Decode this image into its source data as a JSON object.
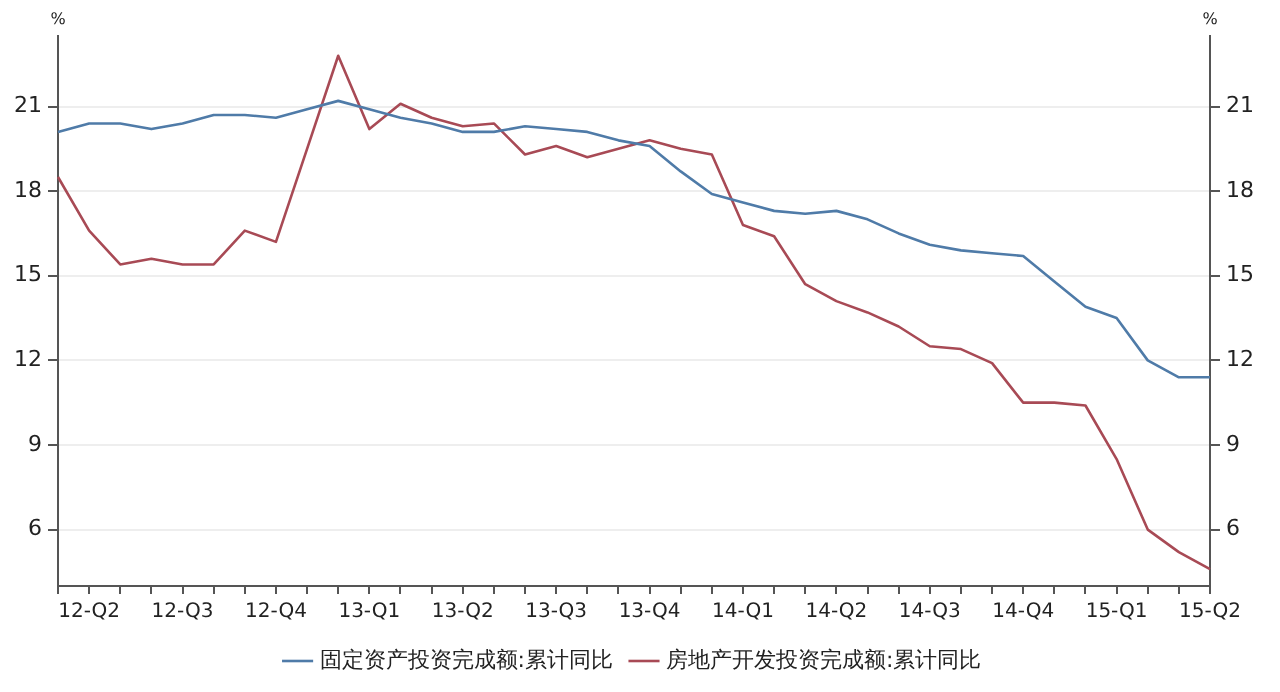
{
  "chart_data": {
    "type": "line",
    "ylabel": "%",
    "y2label": "%",
    "categories": [
      null,
      "12-Q2",
      null,
      null,
      "12-Q3",
      null,
      null,
      "12-Q4",
      null,
      null,
      "13-Q1",
      null,
      null,
      "13-Q2",
      null,
      null,
      "13-Q3",
      null,
      null,
      "13-Q4",
      null,
      null,
      "14-Q1",
      null,
      null,
      "14-Q2",
      null,
      null,
      "14-Q3",
      null,
      null,
      "14-Q4",
      null,
      null,
      "15-Q1",
      null,
      null,
      "15-Q2"
    ],
    "series": [
      {
        "name": "固定资产投资完成额:累计同比",
        "color": "#4f7ba8",
        "values": [
          20.1,
          20.4,
          20.4,
          20.2,
          20.4,
          20.7,
          20.7,
          20.6,
          20.9,
          21.2,
          20.9,
          20.6,
          20.4,
          20.1,
          20.1,
          20.3,
          20.2,
          20.1,
          19.8,
          19.6,
          18.7,
          17.9,
          17.6,
          17.3,
          17.2,
          17.3,
          17.0,
          16.5,
          16.1,
          15.9,
          15.8,
          15.7,
          14.8,
          13.9,
          13.5,
          12.0,
          11.4,
          11.4
        ]
      },
      {
        "name": "房地产开发投资完成额:累计同比",
        "color": "#a84a55",
        "values": [
          18.5,
          16.6,
          15.4,
          15.6,
          15.4,
          15.4,
          16.6,
          16.2,
          19.5,
          22.8,
          20.2,
          21.1,
          20.6,
          20.3,
          20.4,
          19.3,
          19.6,
          19.2,
          19.5,
          19.8,
          19.5,
          19.3,
          16.8,
          16.4,
          14.7,
          14.1,
          13.7,
          13.2,
          12.5,
          12.4,
          11.9,
          10.5,
          10.5,
          10.4,
          8.5,
          6.0,
          5.2,
          4.6
        ]
      }
    ],
    "ylim": [
      4,
      23.5
    ],
    "yticks": [
      6,
      9,
      12,
      15,
      18,
      21
    ],
    "y2lim": [
      4,
      23.5
    ],
    "y2ticks": [
      6,
      9,
      12,
      15,
      18,
      21
    ],
    "grid": "y",
    "legend": "bottom",
    "marker": "none",
    "line_style": "solid"
  }
}
